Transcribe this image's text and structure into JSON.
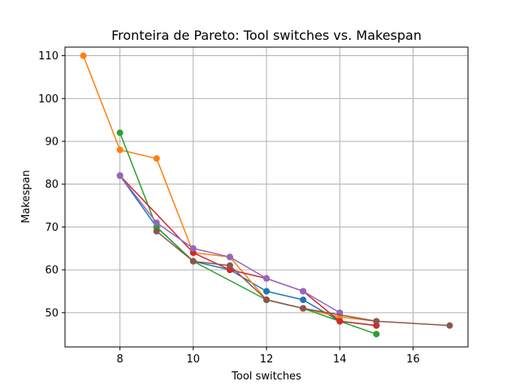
{
  "chart_data": {
    "type": "line",
    "title": "Fronteira de Pareto: Tool switches vs. Makespan",
    "xlabel": "Tool switches",
    "ylabel": "Makespan",
    "xlim": [
      6.5,
      17.5
    ],
    "ylim": [
      42,
      112
    ],
    "xticks": [
      8,
      10,
      12,
      14,
      16
    ],
    "yticks": [
      50,
      60,
      70,
      80,
      90,
      100,
      110
    ],
    "grid": true,
    "legend": "none",
    "markers": true,
    "series": [
      {
        "color": "#1f77b4",
        "points": [
          [
            8,
            82
          ],
          [
            9,
            70
          ],
          [
            10,
            62
          ],
          [
            11,
            60
          ],
          [
            12,
            55
          ],
          [
            13,
            53
          ],
          [
            14,
            48
          ],
          [
            15,
            47
          ]
        ]
      },
      {
        "color": "#ff7f0e",
        "points": [
          [
            7,
            110
          ],
          [
            8,
            88
          ],
          [
            9,
            86
          ],
          [
            10,
            64
          ],
          [
            11,
            63
          ],
          [
            12,
            53
          ],
          [
            13,
            51
          ],
          [
            14,
            49
          ],
          [
            15,
            48
          ]
        ]
      },
      {
        "color": "#2ca02c",
        "points": [
          [
            8,
            92
          ],
          [
            9,
            70
          ],
          [
            10,
            62
          ],
          [
            12,
            53
          ],
          [
            13,
            51
          ],
          [
            14,
            48
          ],
          [
            15,
            45
          ]
        ]
      },
      {
        "color": "#d62728",
        "points": [
          [
            8,
            82
          ],
          [
            10,
            64
          ],
          [
            11,
            60
          ],
          [
            12,
            58
          ],
          [
            13,
            55
          ],
          [
            14,
            48
          ],
          [
            15,
            47
          ]
        ]
      },
      {
        "color": "#9467bd",
        "points": [
          [
            8,
            82
          ],
          [
            9,
            71
          ],
          [
            10,
            65
          ],
          [
            11,
            63
          ],
          [
            12,
            58
          ],
          [
            13,
            55
          ],
          [
            14,
            50
          ]
        ]
      },
      {
        "color": "#8c564b",
        "points": [
          [
            9,
            69
          ],
          [
            10,
            62
          ],
          [
            11,
            61
          ],
          [
            12,
            53
          ],
          [
            13,
            51
          ],
          [
            15,
            48
          ],
          [
            17,
            47
          ]
        ]
      }
    ]
  }
}
